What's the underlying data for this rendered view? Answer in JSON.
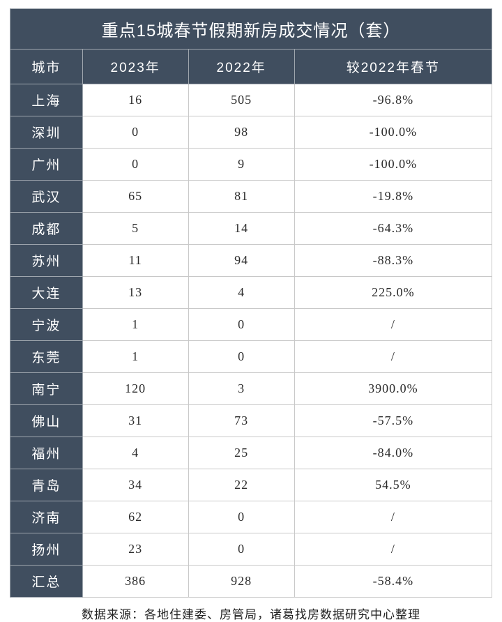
{
  "table": {
    "title": "重点15城春节假期新房成交情况（套）",
    "columns": [
      "城市",
      "2023年",
      "2022年",
      "较2022年春节"
    ],
    "col_widths": [
      "15%",
      "22%",
      "22%",
      "41%"
    ],
    "header_bg": "#404e5f",
    "header_fg": "#ffffff",
    "border_color": "#c8c8c8",
    "header_border_color": "#9fa6ae",
    "cell_fg": "#2b2b2b",
    "title_fontsize": 24,
    "header_fontsize": 19,
    "cell_fontsize": 18,
    "rows": [
      {
        "city": "上海",
        "y2023": "16",
        "y2022": "505",
        "chg": "-96.8%"
      },
      {
        "city": "深圳",
        "y2023": "0",
        "y2022": "98",
        "chg": "-100.0%"
      },
      {
        "city": "广州",
        "y2023": "0",
        "y2022": "9",
        "chg": "-100.0%"
      },
      {
        "city": "武汉",
        "y2023": "65",
        "y2022": "81",
        "chg": "-19.8%"
      },
      {
        "city": "成都",
        "y2023": "5",
        "y2022": "14",
        "chg": "-64.3%"
      },
      {
        "city": "苏州",
        "y2023": "11",
        "y2022": "94",
        "chg": "-88.3%"
      },
      {
        "city": "大连",
        "y2023": "13",
        "y2022": "4",
        "chg": "225.0%"
      },
      {
        "city": "宁波",
        "y2023": "1",
        "y2022": "0",
        "chg": "/"
      },
      {
        "city": "东莞",
        "y2023": "1",
        "y2022": "0",
        "chg": "/"
      },
      {
        "city": "南宁",
        "y2023": "120",
        "y2022": "3",
        "chg": "3900.0%"
      },
      {
        "city": "佛山",
        "y2023": "31",
        "y2022": "73",
        "chg": "-57.5%"
      },
      {
        "city": "福州",
        "y2023": "4",
        "y2022": "25",
        "chg": "-84.0%"
      },
      {
        "city": "青岛",
        "y2023": "34",
        "y2022": "22",
        "chg": "54.5%"
      },
      {
        "city": "济南",
        "y2023": "62",
        "y2022": "0",
        "chg": "/"
      },
      {
        "city": "扬州",
        "y2023": "23",
        "y2022": "0",
        "chg": "/"
      },
      {
        "city": "汇总",
        "y2023": "386",
        "y2022": "928",
        "chg": "-58.4%"
      }
    ]
  },
  "source_note": "数据来源：各地住建委、房管局，诸葛找房数据研究中心整理"
}
